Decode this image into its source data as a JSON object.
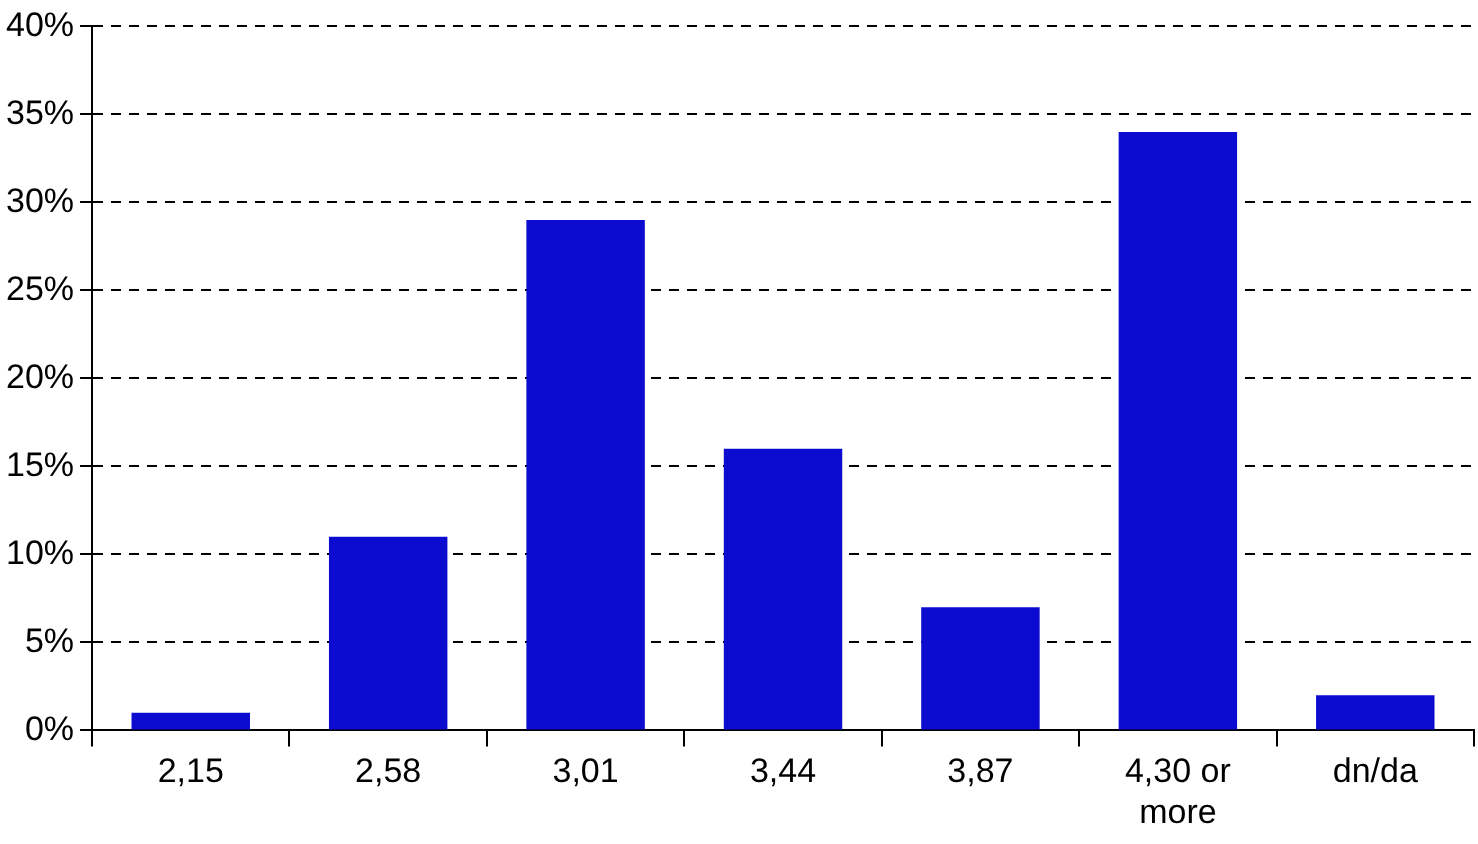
{
  "chart_data": {
    "type": "bar",
    "categories": [
      "2,15",
      "2,58",
      "3,01",
      "3,44",
      "3,87",
      "4,30 or more",
      "dn/da"
    ],
    "values": [
      1,
      11,
      29,
      16,
      7,
      34,
      2
    ],
    "color": "#0c0cd0",
    "ylim": [
      0,
      40
    ],
    "yticks": [
      {
        "value": 0,
        "label": "0%"
      },
      {
        "value": 5,
        "label": "5%"
      },
      {
        "value": 10,
        "label": "10%"
      },
      {
        "value": 15,
        "label": "15%"
      },
      {
        "value": 20,
        "label": "20%"
      },
      {
        "value": 25,
        "label": "25%"
      },
      {
        "value": 30,
        "label": "30%"
      },
      {
        "value": 35,
        "label": "35%"
      },
      {
        "value": 40,
        "label": "40%"
      }
    ],
    "grid": "y",
    "legend": false,
    "line_style": "dashed"
  }
}
